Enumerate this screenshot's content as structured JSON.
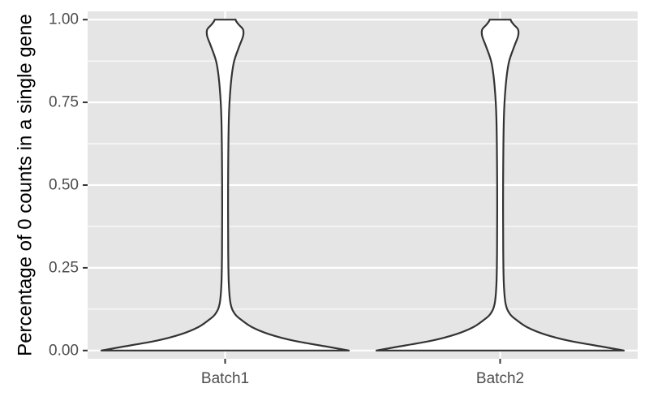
{
  "chart_data": {
    "type": "violin",
    "title": "",
    "xlabel": "",
    "ylabel": "Percentage of 0 counts in a single gene",
    "categories": [
      "Batch1",
      "Batch2"
    ],
    "ylim": [
      -0.025,
      1.025
    ],
    "yticks": [
      0.0,
      0.25,
      0.5,
      0.75,
      1.0
    ],
    "ytick_labels": [
      "0.00",
      "0.25",
      "0.50",
      "0.75",
      "1.00"
    ],
    "grid": true,
    "legend": "none",
    "colors": {
      "panel": "#e5e5e5",
      "gridline": "#ffffff",
      "violin_fill": "#ffffff",
      "violin_outline": "#333333",
      "tick_text": "#4d4d4d"
    },
    "violins": [
      {
        "category": "Batch1",
        "density_profile": [
          [
            0.0,
            1.0
          ],
          [
            0.01,
            0.85
          ],
          [
            0.03,
            0.55
          ],
          [
            0.05,
            0.35
          ],
          [
            0.07,
            0.22
          ],
          [
            0.09,
            0.14
          ],
          [
            0.11,
            0.08
          ],
          [
            0.14,
            0.045
          ],
          [
            0.2,
            0.03
          ],
          [
            0.3,
            0.025
          ],
          [
            0.5,
            0.024
          ],
          [
            0.7,
            0.03
          ],
          [
            0.8,
            0.045
          ],
          [
            0.87,
            0.07
          ],
          [
            0.92,
            0.115
          ],
          [
            0.95,
            0.145
          ],
          [
            0.97,
            0.145
          ],
          [
            0.985,
            0.11
          ],
          [
            0.995,
            0.09
          ],
          [
            1.0,
            0.085
          ]
        ]
      },
      {
        "category": "Batch2",
        "density_profile": [
          [
            0.0,
            1.0
          ],
          [
            0.01,
            0.85
          ],
          [
            0.03,
            0.55
          ],
          [
            0.05,
            0.35
          ],
          [
            0.07,
            0.22
          ],
          [
            0.09,
            0.14
          ],
          [
            0.11,
            0.08
          ],
          [
            0.14,
            0.045
          ],
          [
            0.2,
            0.03
          ],
          [
            0.3,
            0.025
          ],
          [
            0.5,
            0.024
          ],
          [
            0.7,
            0.03
          ],
          [
            0.8,
            0.045
          ],
          [
            0.87,
            0.07
          ],
          [
            0.92,
            0.115
          ],
          [
            0.95,
            0.145
          ],
          [
            0.97,
            0.145
          ],
          [
            0.985,
            0.11
          ],
          [
            0.995,
            0.09
          ],
          [
            1.0,
            0.085
          ]
        ]
      }
    ]
  }
}
